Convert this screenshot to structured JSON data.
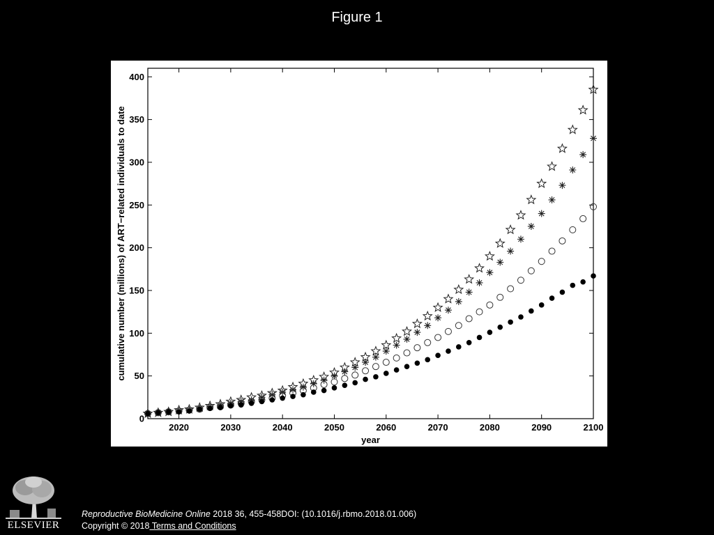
{
  "slide": {
    "title": "Figure 1",
    "citation_journal": "Reproductive BioMedicine Online",
    "citation_rest": " 2018 36, 455-458DOI: (10.1016/j.rbmo.2018.01.006)",
    "copyright_text": "Copyright © 2018",
    "terms_link": " Terms and Conditions",
    "publisher_logo_text": "ELSEVIER"
  },
  "chart_data": {
    "type": "scatter",
    "title": "",
    "xlabel": "year",
    "ylabel": "cumulative number (millions) of ART−related individuals to date",
    "xlim": [
      2014,
      2100
    ],
    "ylim": [
      0,
      410
    ],
    "x_ticks": [
      2020,
      2030,
      2040,
      2050,
      2060,
      2070,
      2080,
      2090,
      2100
    ],
    "y_ticks": [
      0,
      50,
      100,
      150,
      200,
      250,
      300,
      350,
      400
    ],
    "grid": false,
    "legend": "none",
    "x": [
      2014,
      2016,
      2018,
      2020,
      2022,
      2024,
      2026,
      2028,
      2030,
      2032,
      2034,
      2036,
      2038,
      2040,
      2042,
      2044,
      2046,
      2048,
      2050,
      2052,
      2054,
      2056,
      2058,
      2060,
      2062,
      2064,
      2066,
      2068,
      2070,
      2072,
      2074,
      2076,
      2078,
      2080,
      2082,
      2084,
      2086,
      2088,
      2090,
      2092,
      2094,
      2096,
      2098,
      2100
    ],
    "series": [
      {
        "marker": "star",
        "values": [
          6,
          7,
          8,
          10,
          11,
          13,
          15,
          17,
          20,
          22,
          25,
          27,
          30,
          33,
          37,
          41,
          45,
          49,
          54,
          60,
          66,
          72,
          79,
          86,
          94,
          102,
          111,
          120,
          130,
          140,
          151,
          163,
          176,
          190,
          205,
          221,
          238,
          256,
          275,
          295,
          316,
          338,
          361,
          385
        ]
      },
      {
        "marker": "asterisk",
        "values": [
          6,
          7,
          8,
          9,
          10,
          12,
          14,
          16,
          18,
          20,
          22,
          25,
          28,
          31,
          34,
          37,
          41,
          45,
          50,
          55,
          60,
          66,
          72,
          79,
          86,
          93,
          101,
          109,
          118,
          127,
          137,
          148,
          159,
          171,
          183,
          196,
          210,
          225,
          240,
          256,
          273,
          291,
          309,
          328
        ]
      },
      {
        "marker": "open-circle",
        "values": [
          6,
          7,
          8,
          9,
          10,
          11,
          13,
          14,
          16,
          18,
          20,
          22,
          24,
          27,
          30,
          33,
          36,
          40,
          43,
          47,
          51,
          56,
          61,
          66,
          71,
          77,
          83,
          89,
          95,
          102,
          109,
          117,
          125,
          133,
          142,
          152,
          162,
          173,
          184,
          196,
          208,
          221,
          234,
          248
        ]
      },
      {
        "marker": "filled-dot",
        "values": [
          6,
          7,
          8,
          8,
          9,
          11,
          12,
          13,
          15,
          16,
          18,
          20,
          22,
          24,
          26,
          28,
          31,
          33,
          36,
          39,
          42,
          46,
          49,
          53,
          57,
          61,
          65,
          69,
          74,
          79,
          84,
          89,
          95,
          101,
          107,
          113,
          119,
          126,
          133,
          141,
          148,
          156,
          160,
          167
        ]
      }
    ]
  }
}
